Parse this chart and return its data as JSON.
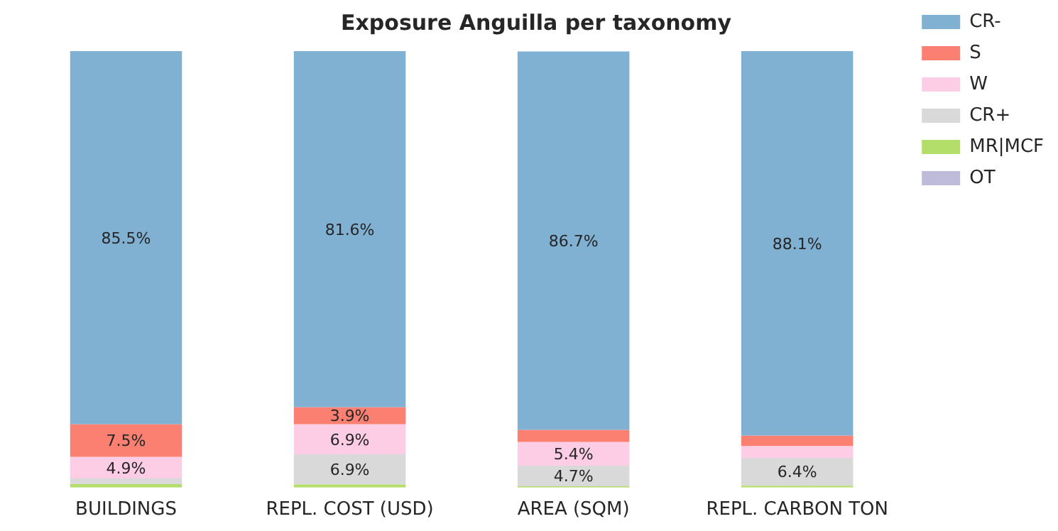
{
  "chart_data": {
    "type": "bar",
    "title": "Exposure Anguilla per taxonomy",
    "categories": [
      "BUILDINGS",
      "REPL. COST (USD)",
      "AREA (SQM)",
      "REPL. CARBON TON"
    ],
    "stacked": true,
    "ylim": [
      0,
      100
    ],
    "legend": "top right",
    "grid": false,
    "tick_labels": "x",
    "series": [
      {
        "name": "OT",
        "color": "#bebada",
        "values": [
          0,
          0,
          0,
          0
        ],
        "value_labels": [
          null,
          null,
          null,
          null
        ]
      },
      {
        "name": "MR|MCF",
        "color": "#b3de69",
        "values": [
          0.8,
          0.7,
          0.3,
          0.4
        ],
        "value_labels": [
          null,
          null,
          null,
          null
        ]
      },
      {
        "name": "CR+",
        "color": "#d9d9d9",
        "values": [
          1.3,
          6.9,
          4.7,
          6.4
        ],
        "value_labels": [
          null,
          "6.9%",
          "4.7%",
          "6.4%"
        ]
      },
      {
        "name": "W",
        "color": "#fccde5",
        "values": [
          4.9,
          6.9,
          5.4,
          2.7
        ],
        "value_labels": [
          "4.9%",
          "6.9%",
          "5.4%",
          null
        ]
      },
      {
        "name": "S",
        "color": "#fb8072",
        "values": [
          7.5,
          3.9,
          2.8,
          2.4
        ],
        "value_labels": [
          "7.5%",
          "3.9%",
          null,
          null
        ]
      },
      {
        "name": "CR-",
        "color": "#80b1d3",
        "values": [
          85.5,
          81.6,
          86.7,
          88.1
        ],
        "value_labels": [
          "85.5%",
          "81.6%",
          "86.7%",
          "88.1%"
        ]
      }
    ]
  }
}
